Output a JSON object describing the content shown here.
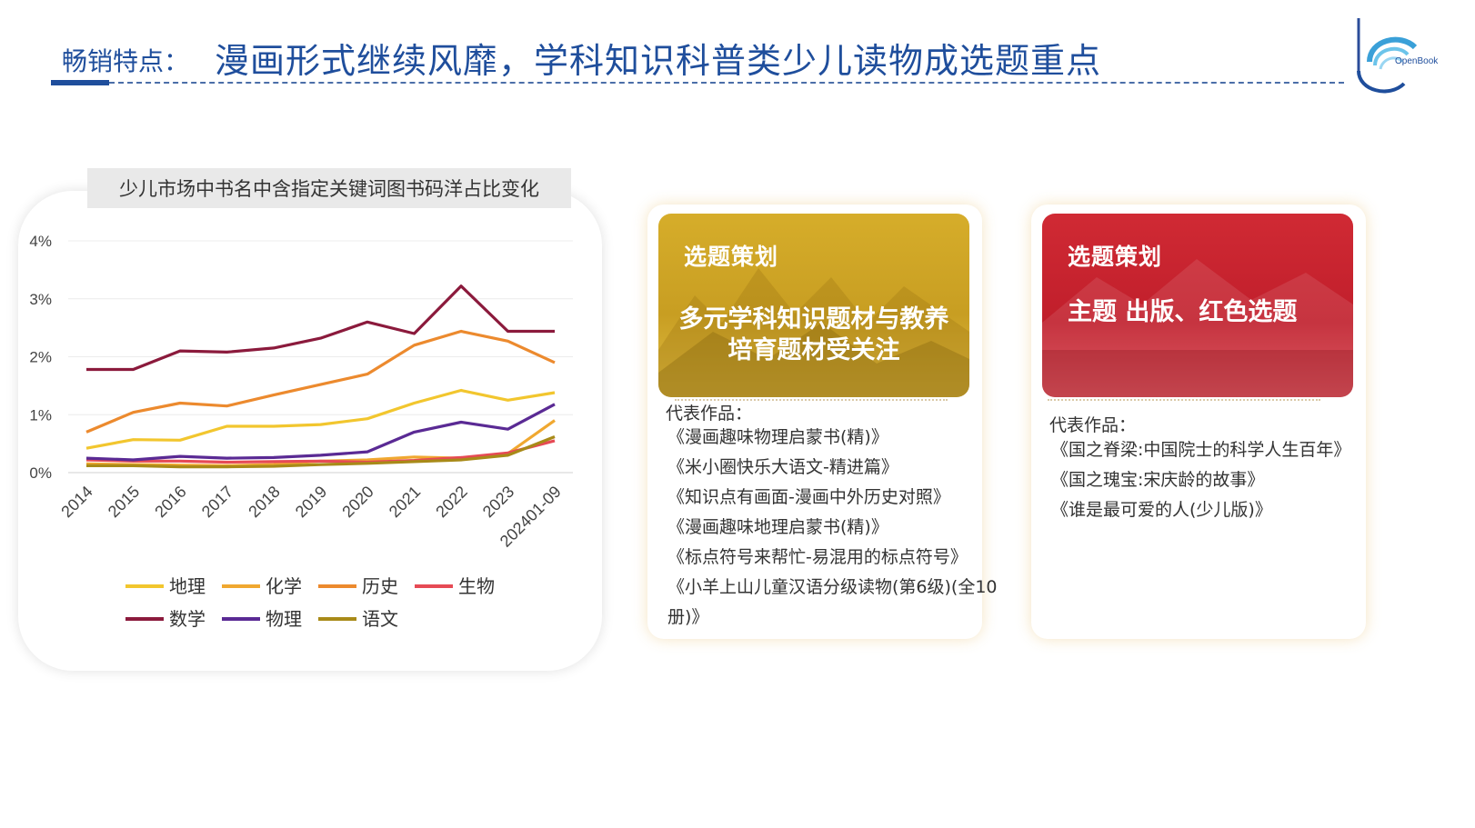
{
  "header": {
    "prefix": "畅销特点：",
    "title": "漫画形式继续风靡，学科知识科普类少儿读物成选题重点"
  },
  "logo": {
    "text": "OpenBook"
  },
  "chart_data": {
    "type": "line",
    "title": "少儿市场中书名中含指定关键词图书码洋占比变化",
    "categories": [
      "2014",
      "2015",
      "2016",
      "2017",
      "2018",
      "2019",
      "2020",
      "2021",
      "2022",
      "2023",
      "202401-09"
    ],
    "ylim": [
      0,
      4
    ],
    "yticks": [
      "0%",
      "1%",
      "2%",
      "3%",
      "4%"
    ],
    "grid": true,
    "legend_position": "bottom",
    "series": [
      {
        "name": "地理",
        "color": "#f2c62e",
        "values": [
          0.42,
          0.57,
          0.56,
          0.8,
          0.8,
          0.83,
          0.93,
          1.2,
          1.42,
          1.25,
          1.38
        ]
      },
      {
        "name": "化学",
        "color": "#f0a830",
        "values": [
          0.15,
          0.14,
          0.13,
          0.12,
          0.14,
          0.2,
          0.22,
          0.27,
          0.25,
          0.33,
          0.9
        ]
      },
      {
        "name": "历史",
        "color": "#ec8a2e",
        "values": [
          0.7,
          1.04,
          1.2,
          1.15,
          1.34,
          1.52,
          1.7,
          2.2,
          2.44,
          2.27,
          1.9
        ]
      },
      {
        "name": "生物",
        "color": "#e64a55",
        "values": [
          0.22,
          0.2,
          0.2,
          0.18,
          0.19,
          0.2,
          0.18,
          0.21,
          0.26,
          0.34,
          0.55
        ]
      },
      {
        "name": "数学",
        "color": "#8b1a3c",
        "values": [
          1.78,
          1.78,
          2.1,
          2.08,
          2.15,
          2.32,
          2.6,
          2.4,
          3.22,
          2.44,
          2.44
        ]
      },
      {
        "name": "物理",
        "color": "#5a2a94",
        "values": [
          0.25,
          0.22,
          0.28,
          0.25,
          0.26,
          0.3,
          0.36,
          0.7,
          0.87,
          0.75,
          1.18
        ]
      },
      {
        "name": "语文",
        "color": "#a88a18",
        "values": [
          0.12,
          0.12,
          0.1,
          0.1,
          0.11,
          0.14,
          0.16,
          0.19,
          0.22,
          0.3,
          0.62
        ]
      }
    ]
  },
  "cards": [
    {
      "head": "选题策划",
      "text": "多元学科知识题材与教养培育题材受关注",
      "rep_label": "代表作品：",
      "works": [
        "《漫画趣味物理启蒙书(精)》",
        "《米小圈快乐大语文-精进篇》",
        "《知识点有画面-漫画中外历史对照》",
        "《漫画趣味地理启蒙书(精)》",
        "《标点符号来帮忙-易混用的标点符号》",
        "《小羊上山儿童汉语分级读物(第6级)(全10",
        "册)》"
      ]
    },
    {
      "head": "选题策划",
      "text": "主题 出版、红色选题",
      "rep_label": "代表作品：",
      "works": [
        "《国之脊梁:中国院士的科学人生百年》",
        "《国之瑰宝:宋庆龄的故事》",
        "《谁是最可爱的人(少儿版)》"
      ]
    }
  ]
}
